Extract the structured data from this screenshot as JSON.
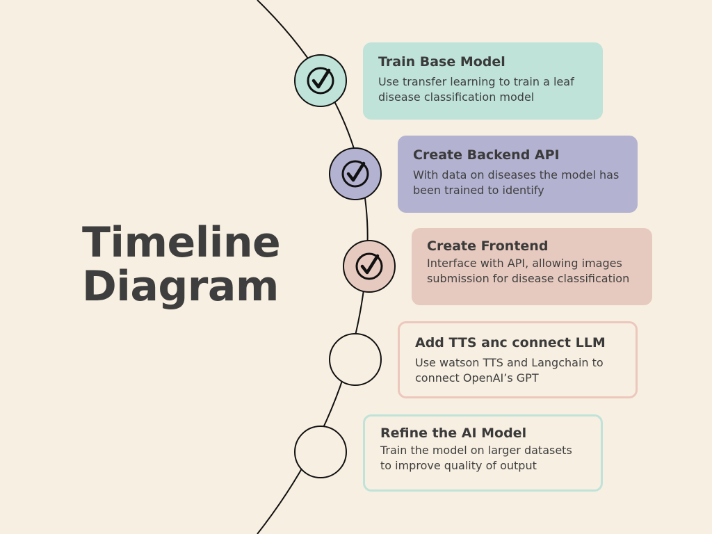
{
  "title": {
    "line1": "Timeline",
    "line2": "Diagram"
  },
  "colors": {
    "background": "#f7efe1",
    "step1": "#bfe3d9",
    "step2": "#b3b2d1",
    "step3": "#e7cabf",
    "step4_border": "#ecc7bd",
    "step5_border": "#bfe3d9"
  },
  "steps": [
    {
      "title": "Train Base Model",
      "description": "Use transfer learning to train a leaf disease classification model",
      "completed": true,
      "icon": "check-icon"
    },
    {
      "title": "Create Backend API",
      "description": "With data on diseases the model has been trained to identify",
      "completed": true,
      "icon": "check-icon"
    },
    {
      "title": "Create Frontend",
      "description": "Interface with API, allowing images submission for disease classification",
      "completed": true,
      "icon": "check-icon"
    },
    {
      "title": "Add TTS anc connect LLM",
      "description": "Use watson TTS and Langchain to connect OpenAI’s GPT",
      "completed": false,
      "icon": ""
    },
    {
      "title": "Refine the AI Model",
      "description": "Train the model on larger datasets to improve quality of output",
      "completed": false,
      "icon": ""
    }
  ]
}
